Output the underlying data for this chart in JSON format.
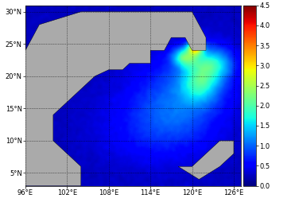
{
  "lon_min": 96,
  "lon_max": 127,
  "lat_min": 3,
  "lat_max": 31,
  "xticks": [
    96,
    102,
    108,
    114,
    120,
    126
  ],
  "yticks": [
    5,
    10,
    15,
    20,
    25,
    30
  ],
  "cmap": "jet",
  "vmin": 0,
  "vmax": 4.5,
  "colorbar_ticks": [
    0,
    0.5,
    1,
    1.5,
    2,
    2.5,
    3,
    3.5,
    4,
    4.5
  ],
  "land_color": "#aaaaaa",
  "bg_color": "#aaaaaa",
  "grid_color": "black",
  "grid_linewidth": 0.5,
  "figure_width": 3.76,
  "figure_height": 2.64,
  "dpi": 100,
  "tick_fontsize": 6,
  "colorbar_fontsize": 6,
  "seed": 42
}
